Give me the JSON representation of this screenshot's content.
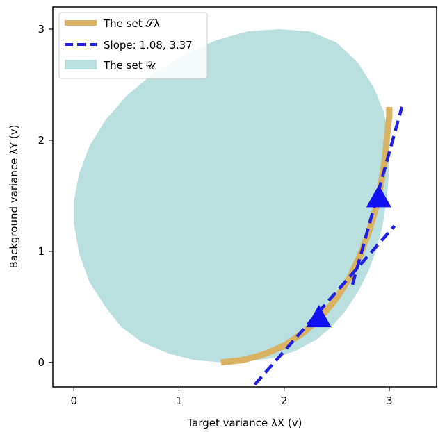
{
  "chart_data": {
    "type": "area",
    "xlabel": "Target variance λX (v)",
    "ylabel": "Background variance λY (v)",
    "xlim": [
      -0.2,
      3.45
    ],
    "ylim": [
      -0.22,
      3.2
    ],
    "x_ticks": [
      0,
      1,
      2,
      3
    ],
    "y_ticks": [
      0,
      1,
      2,
      3
    ],
    "x_tick_labels": [
      "0",
      "1",
      "2",
      "3"
    ],
    "y_tick_labels": [
      "0",
      "1",
      "2",
      "3"
    ],
    "grid": false,
    "legend_position": "top-left",
    "legend": [
      {
        "label": "The set 𝒮λ",
        "color": "#d9b262",
        "style": "thick-line"
      },
      {
        "label": "Slope: 1.08, 3.37",
        "color": "#2020e0",
        "style": "dashed-line"
      },
      {
        "label": "The set 𝒰",
        "color": "#b9e0de",
        "style": "patch"
      }
    ],
    "series": [
      {
        "name": "The set 𝒰",
        "kind": "region",
        "color": "#b9e0de",
        "x": [
          1.4,
          1.15,
          0.9,
          0.65,
          0.45,
          0.3,
          0.15,
          0.05,
          0.0,
          0.0,
          0.05,
          0.15,
          0.3,
          0.5,
          0.75,
          1.05,
          1.35,
          1.65,
          1.95,
          2.25,
          2.5,
          2.7,
          2.85,
          2.95,
          3.0,
          3.0,
          2.98,
          2.94,
          2.88,
          2.8,
          2.7,
          2.58,
          2.45,
          2.3,
          2.1,
          1.9,
          1.65
        ],
        "y": [
          0.0,
          0.02,
          0.08,
          0.18,
          0.32,
          0.5,
          0.72,
          0.98,
          1.25,
          1.45,
          1.7,
          1.95,
          2.18,
          2.4,
          2.6,
          2.77,
          2.9,
          2.98,
          3.0,
          2.98,
          2.88,
          2.7,
          2.48,
          2.25,
          2.0,
          1.75,
          1.5,
          1.25,
          1.02,
          0.82,
          0.63,
          0.46,
          0.32,
          0.2,
          0.1,
          0.04,
          0.01
        ]
      },
      {
        "name": "The set 𝒮λ",
        "kind": "curve",
        "color": "#d9b262",
        "x": [
          1.4,
          1.6,
          1.8,
          2.0,
          2.2,
          2.35,
          2.5,
          2.62,
          2.72,
          2.8,
          2.87,
          2.92,
          2.96,
          2.98,
          3.0,
          3.0
        ],
        "y": [
          0.0,
          0.02,
          0.07,
          0.15,
          0.28,
          0.41,
          0.58,
          0.76,
          0.96,
          1.16,
          1.38,
          1.6,
          1.85,
          2.05,
          2.22,
          2.3
        ]
      },
      {
        "name": "Slope: 1.08",
        "kind": "dashed-line",
        "color": "#2020e0",
        "x": [
          1.72,
          3.05
        ],
        "y": [
          -0.2,
          1.23
        ]
      },
      {
        "name": "Slope: 3.37",
        "kind": "dashed-line",
        "color": "#2020e0",
        "x": [
          2.65,
          3.12
        ],
        "y": [
          0.7,
          2.3
        ]
      }
    ],
    "markers": [
      {
        "shape": "triangle",
        "x": 2.33,
        "y": 0.4,
        "color": "#1010f0"
      },
      {
        "shape": "triangle",
        "x": 2.9,
        "y": 1.48,
        "color": "#1010f0"
      }
    ]
  }
}
